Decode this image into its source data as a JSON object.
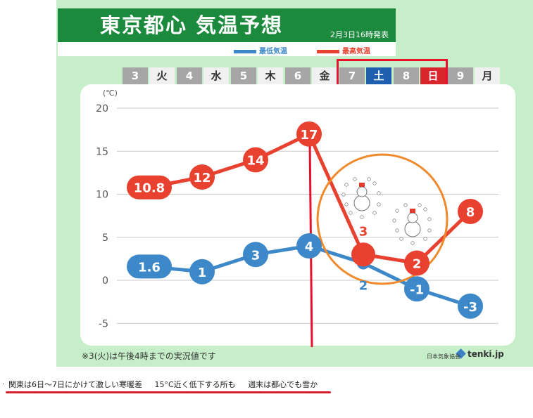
{
  "header": {
    "title": "東京都心 気温予想",
    "issued": "2月3日16時発表",
    "legend_min": "最低気温",
    "legend_max": "最高気温"
  },
  "days": [
    {
      "num": "3",
      "name": "火"
    },
    {
      "num": "4",
      "name": "水"
    },
    {
      "num": "5",
      "name": "木"
    },
    {
      "num": "6",
      "name": "金"
    },
    {
      "num": "7",
      "name": "土"
    },
    {
      "num": "8",
      "name": "日"
    },
    {
      "num": "9",
      "name": "月"
    }
  ],
  "footer": {
    "note": "※3(火)は午後4時までの実況値です",
    "credit": "日本気象協会",
    "brand": "tenki.jp"
  },
  "headline": {
    "part1": "関東は6日〜7日にかけて激しい寒暖差",
    "part2": "15°C近く低下する所も",
    "part3": "週末は都心でも雪か"
  },
  "colors": {
    "max": "#e8412f",
    "min": "#3d88c8",
    "header_green": "#1b8a3c",
    "saturday": "#1f5fb0",
    "sunday": "#d9262c",
    "annotation_red": "#e8112d",
    "annotation_orange": "#f0892a"
  },
  "chart_data": {
    "type": "line",
    "unit": "(℃)",
    "categories": [
      "3 火",
      "4 水",
      "5 木",
      "6 金",
      "7 土",
      "8 日",
      "9 月"
    ],
    "y_ticks": [
      "20",
      "15",
      "10",
      "5",
      "0",
      "-5"
    ],
    "ylim": [
      -5,
      20
    ],
    "grid": true,
    "series": [
      {
        "name": "最高気温",
        "values": [
          10.8,
          12,
          14,
          17,
          3,
          2,
          8
        ],
        "labels": [
          "10.8",
          "12",
          "14",
          "17",
          "3",
          "2",
          "8"
        ]
      },
      {
        "name": "最低気温",
        "values": [
          1.6,
          1,
          3,
          4,
          2,
          -1,
          -3
        ],
        "labels": [
          "1.6",
          "1",
          "3",
          "4",
          "2",
          "-1",
          "-3"
        ]
      }
    ]
  }
}
